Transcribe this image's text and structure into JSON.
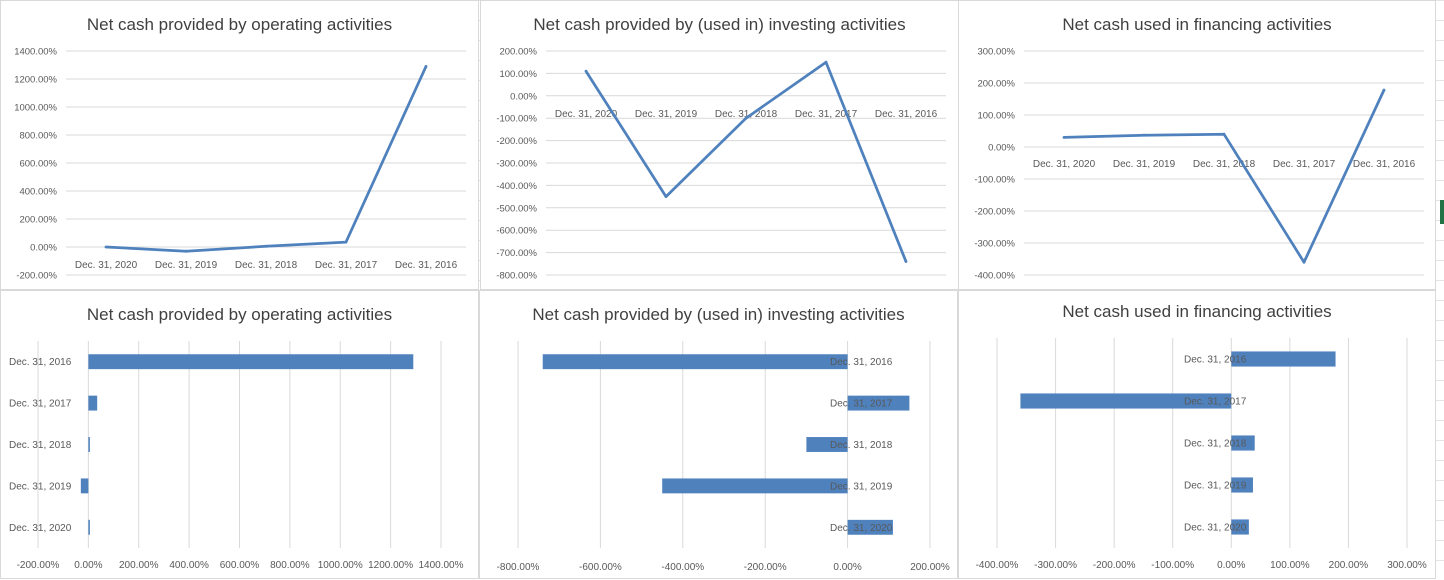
{
  "sheet": {
    "accent_color": "#4f81bd",
    "selection_color": "#217346"
  },
  "chart_data": [
    {
      "type": "line",
      "title": "Net cash provided by operating activities",
      "categories": [
        "Dec. 31, 2020",
        "Dec. 31, 2019",
        "Dec. 31, 2018",
        "Dec. 31, 2017",
        "Dec. 31, 2016"
      ],
      "values": [
        0,
        -30,
        5,
        35,
        1290
      ],
      "value_format": "percent",
      "ylim": [
        -200,
        1400
      ],
      "ytick_step": 200,
      "ytick_labels": [
        "-200.00%",
        "0.00%",
        "200.00%",
        "400.00%",
        "600.00%",
        "800.00%",
        "1000.00%",
        "1200.00%",
        "1400.00%"
      ],
      "grid": true,
      "color": "#4f81bd"
    },
    {
      "type": "line",
      "title": "Net cash provided by (used in) investing activities",
      "categories": [
        "Dec. 31, 2020",
        "Dec. 31, 2019",
        "Dec. 31, 2018",
        "Dec. 31, 2017",
        "Dec. 31, 2016"
      ],
      "values": [
        110,
        -450,
        -100,
        150,
        -740
      ],
      "value_format": "percent",
      "ylim": [
        -800,
        200
      ],
      "ytick_step": 100,
      "ytick_labels": [
        "-800.00%",
        "-700.00%",
        "-600.00%",
        "-500.00%",
        "-400.00%",
        "-300.00%",
        "-200.00%",
        "-100.00%",
        "0.00%",
        "100.00%",
        "200.00%"
      ],
      "grid": true,
      "color": "#4f81bd"
    },
    {
      "type": "line",
      "title": "Net cash used in financing activities",
      "categories": [
        "Dec. 31, 2020",
        "Dec. 31, 2019",
        "Dec. 31, 2018",
        "Dec. 31, 2017",
        "Dec. 31, 2016"
      ],
      "values": [
        30,
        37,
        40,
        -360,
        178
      ],
      "value_format": "percent",
      "ylim": [
        -400,
        300
      ],
      "ytick_step": 100,
      "ytick_labels": [
        "-400.00%",
        "-300.00%",
        "-200.00%",
        "-100.00%",
        "0.00%",
        "100.00%",
        "200.00%",
        "300.00%"
      ],
      "grid": true,
      "color": "#4f81bd"
    },
    {
      "type": "bar",
      "orientation": "horizontal",
      "title": "Net cash provided by operating activities",
      "categories": [
        "Dec. 31, 2020",
        "Dec. 31, 2019",
        "Dec. 31, 2018",
        "Dec. 31, 2017",
        "Dec. 31, 2016"
      ],
      "values": [
        0,
        -30,
        5,
        35,
        1290
      ],
      "value_format": "percent",
      "xlim": [
        -200,
        1400
      ],
      "xtick_step": 200,
      "xtick_labels": [
        "-200.00%",
        "0.00%",
        "200.00%",
        "400.00%",
        "600.00%",
        "800.00%",
        "1000.00%",
        "1200.00%",
        "1400.00%"
      ],
      "grid": true,
      "color": "#4f81bd"
    },
    {
      "type": "bar",
      "orientation": "horizontal",
      "title": "Net cash provided by (used in) investing activities",
      "categories": [
        "Dec. 31, 2020",
        "Dec. 31, 2019",
        "Dec. 31, 2018",
        "Dec. 31, 2017",
        "Dec. 31, 2016"
      ],
      "values": [
        110,
        -450,
        -100,
        150,
        -740
      ],
      "value_format": "percent",
      "xlim": [
        -800,
        200
      ],
      "xtick_step": 200,
      "xtick_labels": [
        "-800.00%",
        "-600.00%",
        "-400.00%",
        "-200.00%",
        "0.00%",
        "200.00%"
      ],
      "grid": true,
      "color": "#4f81bd"
    },
    {
      "type": "bar",
      "orientation": "horizontal",
      "title": "Net cash used in financing activities",
      "categories": [
        "Dec. 31, 2020",
        "Dec. 31, 2019",
        "Dec. 31, 2018",
        "Dec. 31, 2017",
        "Dec. 31, 2016"
      ],
      "values": [
        30,
        37,
        40,
        -360,
        178
      ],
      "value_format": "percent",
      "xlim": [
        -400,
        300
      ],
      "xtick_step": 100,
      "xtick_labels": [
        "-400.00%",
        "-300.00%",
        "-200.00%",
        "-100.00%",
        "0.00%",
        "100.00%",
        "200.00%",
        "300.00%"
      ],
      "grid": true,
      "color": "#4f81bd"
    }
  ]
}
